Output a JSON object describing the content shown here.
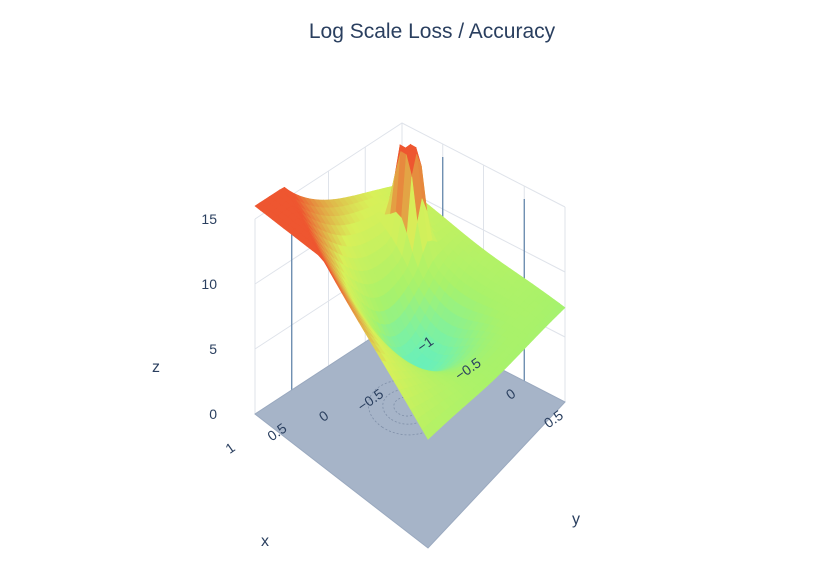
{
  "chart_data": {
    "type": "surface",
    "title": "Log Scale Loss / Accuracy",
    "xlabel": "x",
    "ylabel": "y",
    "zlabel": "z",
    "x_ticks": [
      "1",
      "0.5",
      "0",
      "−0.5"
    ],
    "y_ticks": [
      "−1",
      "−0.5",
      "0",
      "0.5"
    ],
    "z_ticks": [
      "0",
      "5",
      "10",
      "15"
    ],
    "xlim": [
      -1,
      1
    ],
    "ylim": [
      -1,
      1
    ],
    "zlim": [
      0,
      15
    ],
    "grid": true,
    "colorscale": [
      "#39e1ec",
      "#5ef0c8",
      "#a9f26a",
      "#d8f059",
      "#ee5630"
    ],
    "floor_color": "#a6b4c8",
    "surface": {
      "formula": "log loss surface with central basin, peak toward corner x=1,y=-1",
      "corner_values": {
        "x1_ym1": 15,
        "x1_y1": 2.5,
        "xm1_ym1": 6,
        "xm1_y1": 0.5
      },
      "center_value": 4,
      "spike_height": 12
    }
  }
}
